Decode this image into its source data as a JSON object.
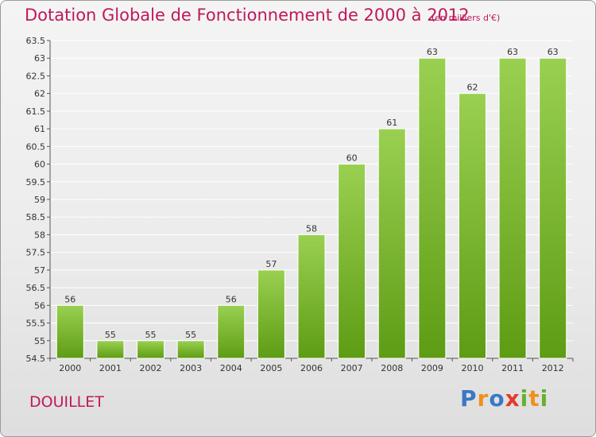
{
  "title": "Dotation Globale de Fonctionnement de 2000 à 2012",
  "unit_note": "(en milliers d'€)",
  "commune": "DOUILLET",
  "logo": {
    "text": "Proxiti",
    "letters": [
      {
        "ch": "P",
        "color": "#3a78c3"
      },
      {
        "ch": "r",
        "color": "#f0901e"
      },
      {
        "ch": "o",
        "color": "#3a78c3"
      },
      {
        "ch": "x",
        "color": "#e23b2a"
      },
      {
        "ch": "i",
        "color": "#66b032"
      },
      {
        "ch": "t",
        "color": "#f0901e"
      },
      {
        "ch": "i",
        "color": "#66b032"
      }
    ]
  },
  "colors": {
    "accent": "#c0185a",
    "bar_top": "#9ad051",
    "bar_bottom": "#5e9c14",
    "grid": "#ffffff",
    "text": "#333333"
  },
  "chart_data": {
    "type": "bar",
    "categories": [
      "2000",
      "2001",
      "2002",
      "2003",
      "2004",
      "2005",
      "2006",
      "2007",
      "2008",
      "2009",
      "2010",
      "2011",
      "2012"
    ],
    "values": [
      56,
      55,
      55,
      55,
      56,
      57,
      58,
      60,
      61,
      63,
      62,
      63,
      63
    ],
    "data_labels": [
      "56",
      "55",
      "55",
      "55",
      "56",
      "57",
      "58",
      "60",
      "61",
      "63",
      "62",
      "63",
      "63"
    ],
    "ylim": [
      54.5,
      63.5
    ],
    "yticks": [
      54.5,
      55,
      55.5,
      56,
      56.5,
      57,
      57.5,
      58,
      58.5,
      59,
      59.5,
      60,
      60.5,
      61,
      61.5,
      62,
      62.5,
      63,
      63.5
    ],
    "ytick_labels": [
      "54.5",
      "55",
      "55.5",
      "56",
      "56.5",
      "57",
      "57.5",
      "58",
      "58.5",
      "59",
      "59.5",
      "60",
      "60.5",
      "61",
      "61.5",
      "62",
      "62.5",
      "63",
      "63.5"
    ],
    "grid": true,
    "title": "Dotation Globale de Fonctionnement de 2000 à 2012",
    "xlabel": "",
    "ylabel": ""
  }
}
